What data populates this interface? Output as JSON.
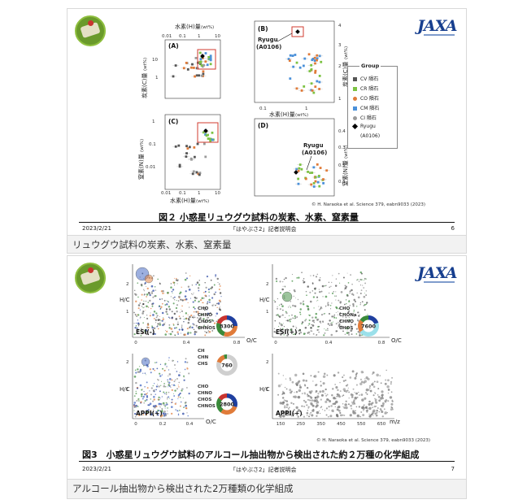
{
  "slide1": {
    "figure_title": "図２ 小惑星リュウグウ試料の炭素、水素、窒素量",
    "credit": "© H. Naraoka et al. Science 379, eabn9033 (2023)",
    "date": "2023/2/21",
    "footer_center": "「はやぶさ2」記者説明会",
    "page": "6",
    "caption": "リュウグウ試料の炭素、水素、窒素量",
    "jaxa": "JAXA",
    "panels": {
      "A": "(A)",
      "B": "(B)",
      "C": "(C)",
      "D": "(D)",
      "top_axis_label": "水素(H)量",
      "top_axis_unit": "(wt%)",
      "carbon_label": "炭素(C)量",
      "carbon_unit": "(wt%)",
      "nitrogen_label": "窒素(N)量",
      "nitrogen_unit": "(wt%)",
      "hydrogen_label": "水素(H)量",
      "hydrogen_unit": "(wt%)",
      "ryugu_b": "Ryugu",
      "ryugu_b_id": "(A0106)",
      "ryugu_d": "Ryugu",
      "ryugu_d_id": "(A0106)"
    },
    "legend": {
      "title": "Group",
      "items": [
        {
          "label": "CV 隕石",
          "color": "#555555",
          "shape": "square"
        },
        {
          "label": "CR 隕石",
          "color": "#7cc242",
          "shape": "square"
        },
        {
          "label": "CO 隕石",
          "color": "#e07b39",
          "shape": "circle"
        },
        {
          "label": "CM 隕石",
          "color": "#4a90d9",
          "shape": "square"
        },
        {
          "label": "CI 隕石",
          "color": "#9a9a9a",
          "shape": "circle"
        },
        {
          "label": "Ryugu",
          "color": "#000000",
          "shape": "diamond"
        },
        {
          "label": "(A0106)",
          "color": "",
          "shape": "none"
        }
      ]
    }
  },
  "slide2": {
    "figure_title": "図3　小惑星リュウグウ試料のアルコール抽出物から検出された約２万種の化学組成",
    "credit": "© H. Naraoka et al. Science 379, eabn9033 (2023)",
    "date": "2023/2/21",
    "footer_center": "「はやぶさ2」記者説明会",
    "page": "7",
    "caption": "アルコール抽出物から検出された2万種類の化学組成",
    "panels": {
      "esi_minus": "ESI(-)",
      "esi_plus": "ESI(+)",
      "appi_plus": "APPI(+)",
      "hc": "H/C",
      "oc": "O/C",
      "mz": "m/z",
      "x_ticks_esi": [
        "0",
        "0.4",
        "0.8"
      ],
      "x_ticks_appi": [
        "0",
        "0.2",
        "0.4"
      ],
      "mz_ticks": [
        "150",
        "250",
        "350",
        "450",
        "550",
        "650"
      ],
      "y_ticks": [
        "2",
        "1"
      ]
    },
    "donuts": [
      {
        "count": "8300",
        "labels": [
          "CHO",
          "CHNO",
          "CHOS",
          "CHNOS"
        ],
        "label_colors": [
          "#1f3f9f",
          "#e07b39",
          "#3a8a3a",
          "#c9342f"
        ],
        "slices": [
          0.25,
          0.3,
          0.25,
          0.2
        ],
        "colors": [
          "#1f3f9f",
          "#e07b39",
          "#3a8a3a",
          "#c9342f"
        ]
      },
      {
        "count": "7600",
        "labels": [
          "CHO",
          "CHONa",
          "CHNO",
          "CHOS"
        ],
        "label_colors": [
          "#1f3f9f",
          "#aaaaaa",
          "#e07b39",
          "#3a8a3a"
        ],
        "slices": [
          0.2,
          0.45,
          0.2,
          0.15
        ],
        "colors": [
          "#1f3f9f",
          "#9be0ea",
          "#e07b39",
          "#3a8a3a"
        ]
      },
      {
        "count": "760",
        "labels": [
          "CH",
          "CHN",
          "CHS"
        ],
        "label_colors": [
          "#aaaaaa",
          "#e07b39",
          "#3a8a3a"
        ],
        "slices": [
          0.8,
          0.15,
          0.05
        ],
        "colors": [
          "#cfcfcf",
          "#e07b39",
          "#3a8a3a"
        ]
      },
      {
        "count": "2800",
        "labels": [
          "CHO",
          "CHNO",
          "CHOS",
          "CHNOS"
        ],
        "label_colors": [
          "#1f3f9f",
          "#e07b39",
          "#3a8a3a",
          "#c9342f"
        ],
        "slices": [
          0.3,
          0.3,
          0.25,
          0.15
        ],
        "colors": [
          "#1f3f9f",
          "#e07b39",
          "#3a8a3a",
          "#c9342f"
        ]
      }
    ]
  }
}
